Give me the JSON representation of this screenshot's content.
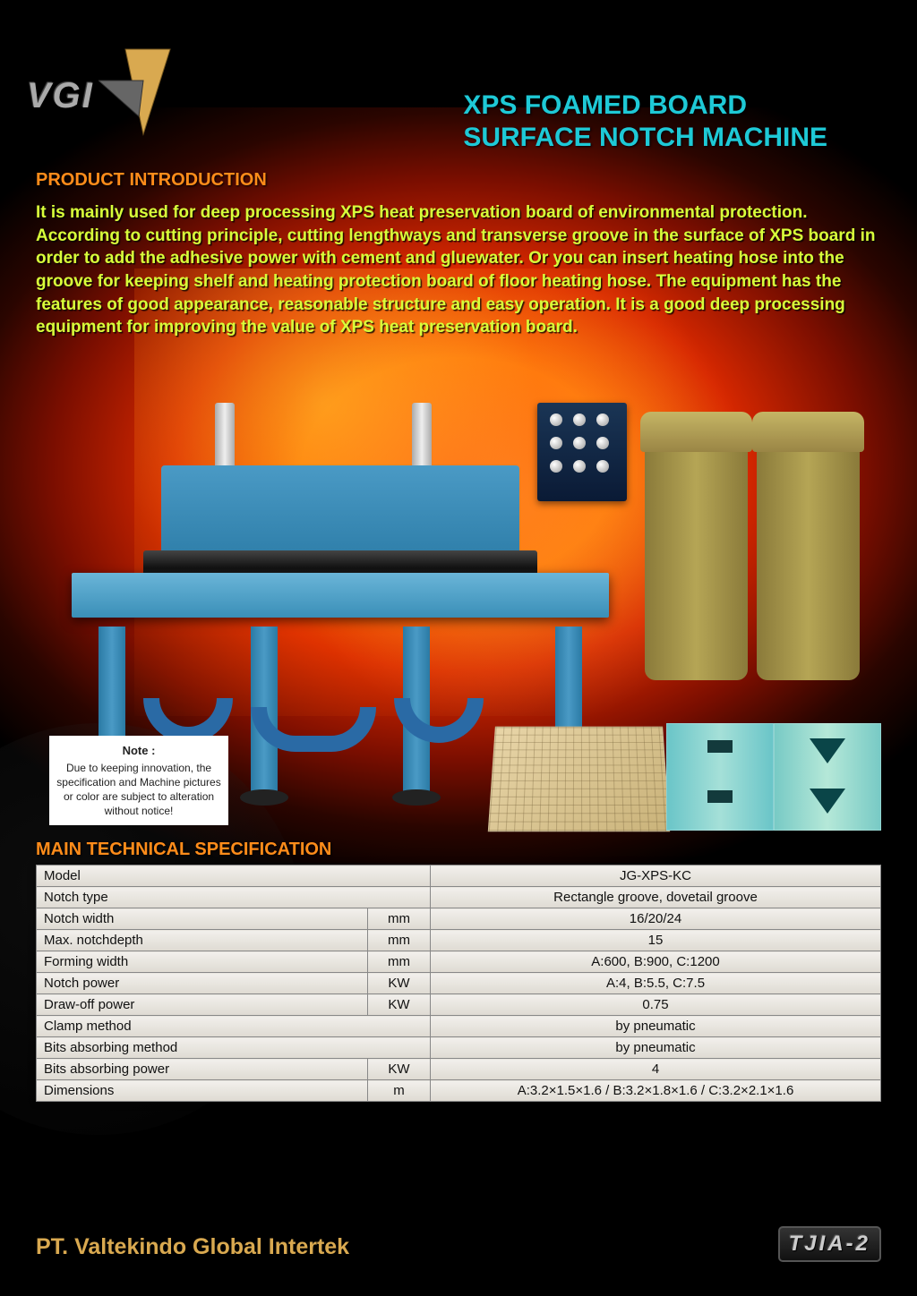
{
  "logo": {
    "text": "VGI",
    "shape_color": "#d9a950",
    "shape_dark": "#555"
  },
  "title": {
    "line1": "XPS FOAMED BOARD",
    "line2": "SURFACE NOTCH MACHINE"
  },
  "intro": {
    "header": "PRODUCT INTRODUCTION",
    "body": "It is mainly used for deep processing XPS heat preservation board of environmental protection. According to cutting principle, cutting lengthways and transverse groove in the surface of XPS board in order to add the adhesive power with cement and gluewater. Or you can insert heating hose into the groove for keeping shelf and heating protection board of floor heating hose. The equipment has the features of good appearance, reasonable structure and easy operation. It is a good deep processing equipment for improving the value of XPS heat preservation board."
  },
  "note": {
    "title": "Note :",
    "body": "Due to keeping innovation, the specification and Machine pictures or color are subject to alteration without notice!"
  },
  "spec": {
    "header": "MAIN TECHNICAL SPECIFICATION",
    "rows": [
      {
        "label": "Model",
        "unit": "",
        "value": "JG-XPS-KC"
      },
      {
        "label": "Notch type",
        "unit": "",
        "value": "Rectangle groove, dovetail groove"
      },
      {
        "label": "Notch width",
        "unit": "mm",
        "value": "16/20/24"
      },
      {
        "label": "Max. notchdepth",
        "unit": "mm",
        "value": "15"
      },
      {
        "label": "Forming width",
        "unit": "mm",
        "value": "A:600, B:900, C:1200"
      },
      {
        "label": "Notch power",
        "unit": "KW",
        "value": "A:4, B:5.5, C:7.5"
      },
      {
        "label": "Draw-off power",
        "unit": "KW",
        "value": "0.75"
      },
      {
        "label": "Clamp method",
        "unit": "",
        "value": "by pneumatic"
      },
      {
        "label": "Bits absorbing method",
        "unit": "",
        "value": "by pneumatic"
      },
      {
        "label": "Bits absorbing power",
        "unit": "KW",
        "value": "4"
      },
      {
        "label": "Dimensions",
        "unit": "m",
        "value": "A:3.2×1.5×1.6 / B:3.2×1.8×1.6 / C:3.2×2.1×1.6"
      }
    ]
  },
  "footer": {
    "company": "PT. Valtekindo Global Intertek",
    "code": "TJIA-2"
  },
  "colors": {
    "title": "#1ec9d6",
    "section": "#ff8c1a",
    "intro_text": "#d8ff3a",
    "machine_blue": "#3a8fb8",
    "bag": "#a59045"
  }
}
